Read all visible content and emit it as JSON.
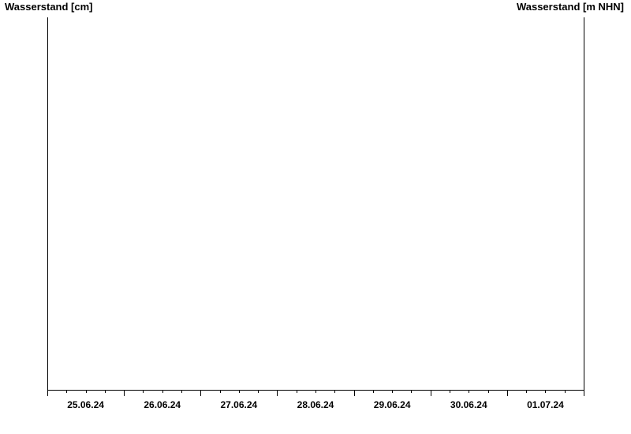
{
  "chart_data": {
    "type": "line",
    "y_left_label": "Wasserstand [cm]",
    "y_right_label": "Wasserstand [m NHN]",
    "x_tick_labels": [
      "25.06.24",
      "26.06.24",
      "27.06.24",
      "28.06.24",
      "29.06.24",
      "30.06.24",
      "01.07.24"
    ],
    "xlim": [
      "25.06.24 00:00",
      "02.07.24 00:00"
    ],
    "series": [],
    "grid": false
  }
}
